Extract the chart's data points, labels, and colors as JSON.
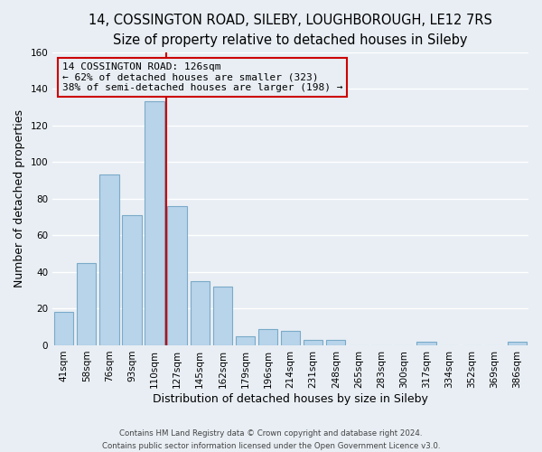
{
  "title": "14, COSSINGTON ROAD, SILEBY, LOUGHBOROUGH, LE12 7RS",
  "subtitle": "Size of property relative to detached houses in Sileby",
  "xlabel": "Distribution of detached houses by size in Sileby",
  "ylabel": "Number of detached properties",
  "bar_labels": [
    "41sqm",
    "58sqm",
    "76sqm",
    "93sqm",
    "110sqm",
    "127sqm",
    "145sqm",
    "162sqm",
    "179sqm",
    "196sqm",
    "214sqm",
    "231sqm",
    "248sqm",
    "265sqm",
    "283sqm",
    "300sqm",
    "317sqm",
    "334sqm",
    "352sqm",
    "369sqm",
    "386sqm"
  ],
  "bar_values": [
    18,
    45,
    93,
    71,
    133,
    76,
    35,
    32,
    5,
    9,
    8,
    3,
    3,
    0,
    0,
    0,
    2,
    0,
    0,
    0,
    2
  ],
  "bar_color": "#b8d4ea",
  "bar_edge_color": "#7aaac8",
  "vline_color": "#cc0000",
  "vline_index": 4.5,
  "annotation_text_line1": "14 COSSINGTON ROAD: 126sqm",
  "annotation_text_line2": "← 62% of detached houses are smaller (323)",
  "annotation_text_line3": "38% of semi-detached houses are larger (198) →",
  "annotation_box_edgecolor": "#cc0000",
  "ylim": [
    0,
    160
  ],
  "yticks": [
    0,
    20,
    40,
    60,
    80,
    100,
    120,
    140,
    160
  ],
  "footer_line1": "Contains HM Land Registry data © Crown copyright and database right 2024.",
  "footer_line2": "Contains public sector information licensed under the Open Government Licence v3.0.",
  "bg_color": "#e8eef4",
  "grid_color": "#ffffff",
  "title_fontsize": 10.5,
  "subtitle_fontsize": 9.5,
  "axis_label_fontsize": 9,
  "tick_fontsize": 7.5
}
